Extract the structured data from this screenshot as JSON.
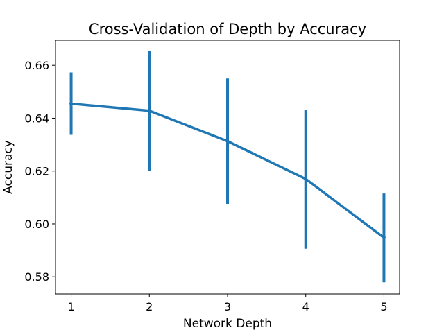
{
  "chart_data": {
    "type": "line",
    "title": "Cross-Validation of Depth by Accuracy",
    "xlabel": "Network Depth",
    "ylabel": "Accuracy",
    "x": [
      1,
      2,
      3,
      4,
      5
    ],
    "xticks": [
      "1",
      "2",
      "3",
      "4",
      "5"
    ],
    "xlim": [
      0.8,
      5.2
    ],
    "ylim": [
      0.5735,
      0.6695
    ],
    "yticks": [
      0.58,
      0.6,
      0.62,
      0.64,
      0.66
    ],
    "ytick_labels": [
      "0.58",
      "0.60",
      "0.62",
      "0.64",
      "0.66"
    ],
    "grid": false,
    "series": [
      {
        "values": [
          0.6455,
          0.6428,
          0.6313,
          0.617,
          0.5948
        ],
        "error_low": [
          0.6337,
          0.6202,
          0.6076,
          0.5906,
          0.5779
        ],
        "error_high": [
          0.6573,
          0.6653,
          0.655,
          0.6432,
          0.6115
        ],
        "color": "#1f77b4"
      }
    ]
  }
}
